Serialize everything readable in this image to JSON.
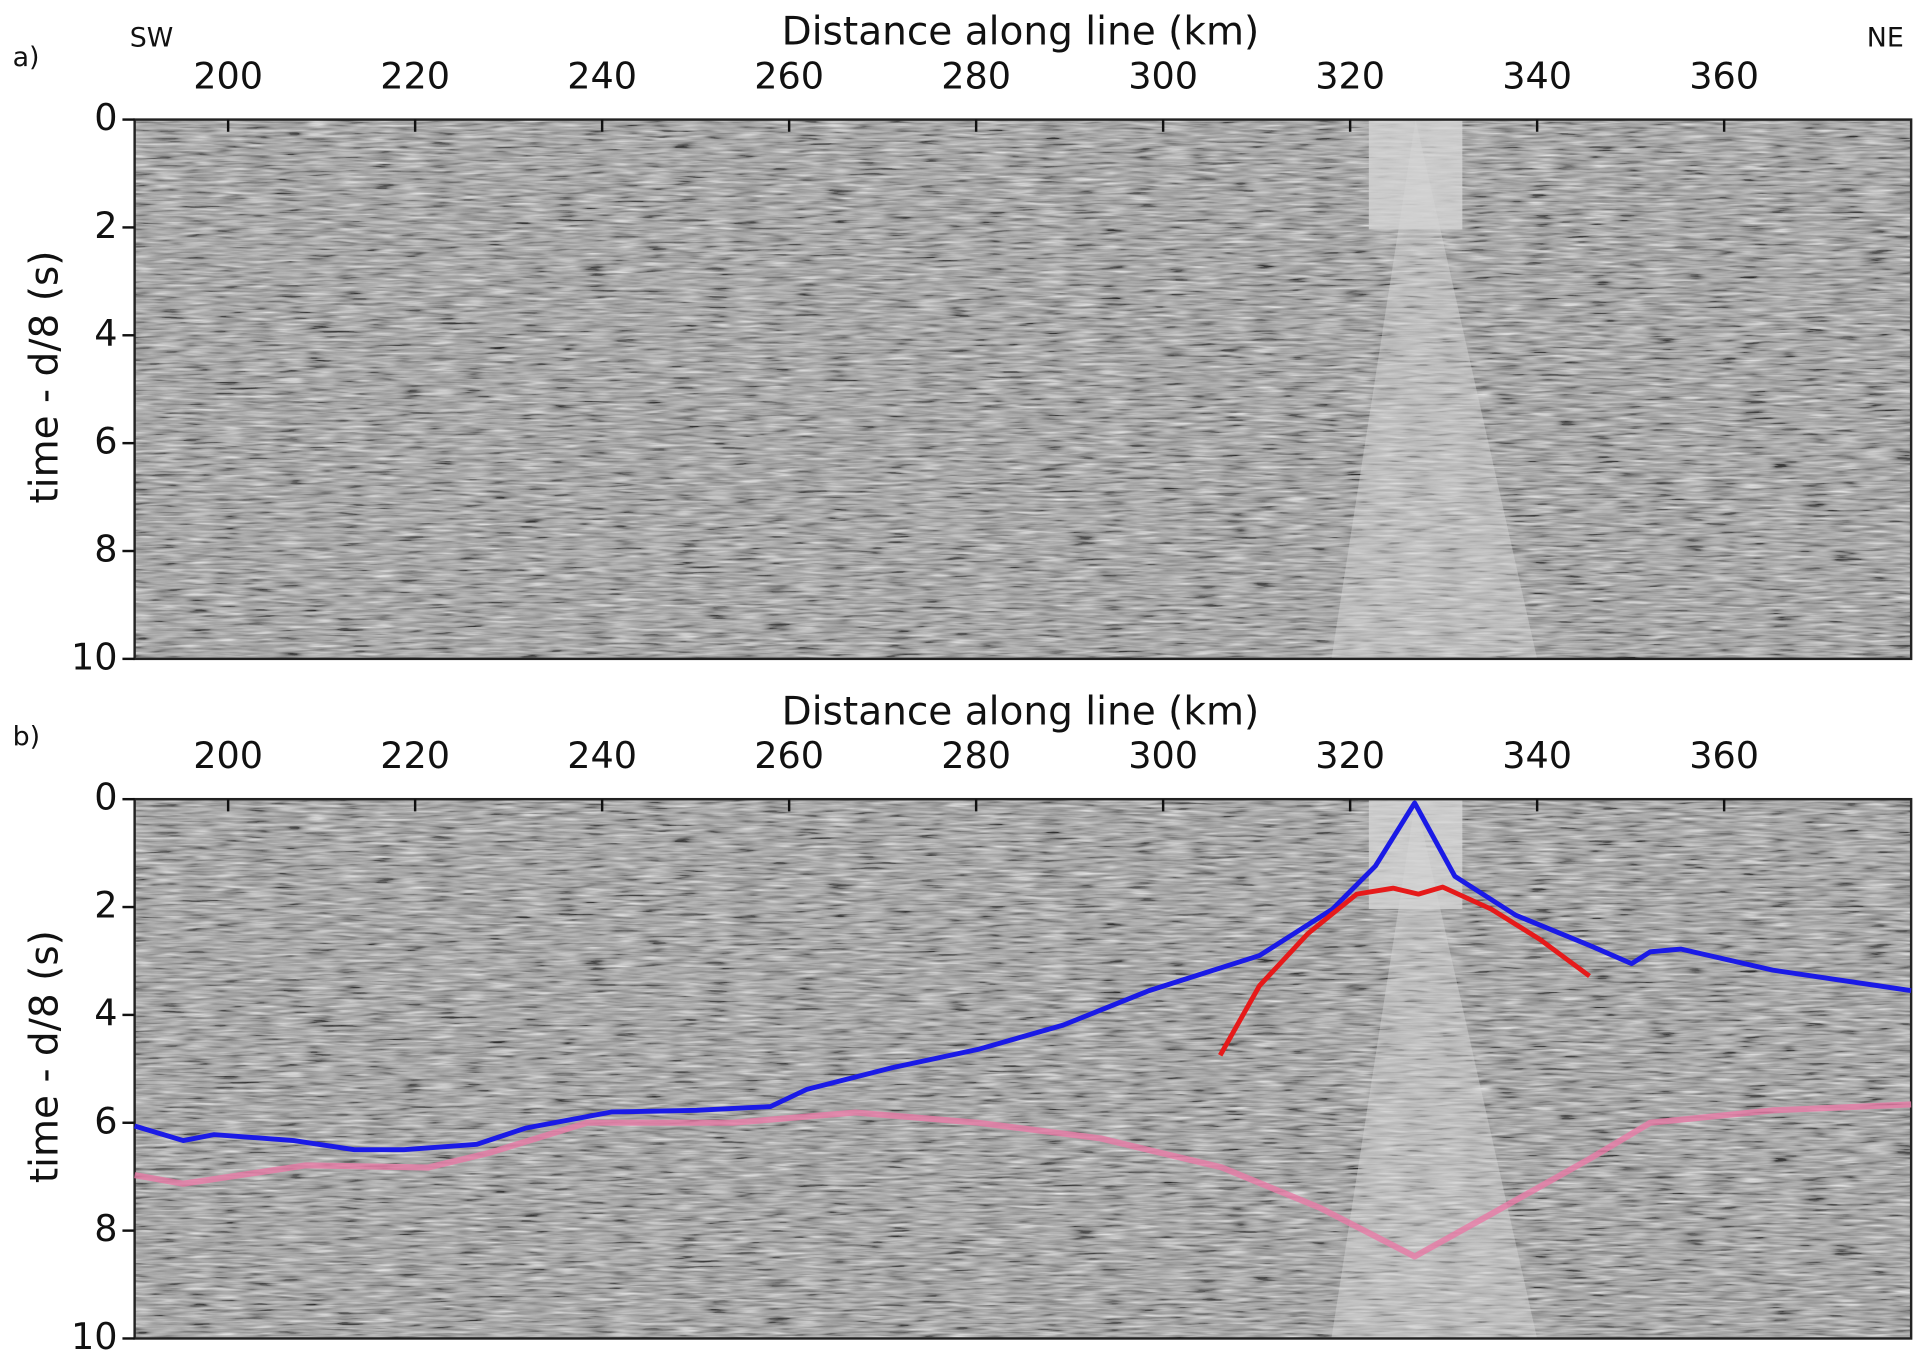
{
  "chart_data": [
    {
      "type": "seismic",
      "panel_label": "a)",
      "left_label": "SW",
      "right_label": "NE",
      "xlabel": "Distance along line (km)",
      "ylabel": "time - d/8 (s)",
      "xlim": [
        190,
        380
      ],
      "xticks": [
        200,
        220,
        240,
        260,
        280,
        300,
        320,
        340,
        360
      ],
      "ylim": [
        0,
        10
      ],
      "yticks": [
        0,
        2,
        4,
        6,
        8,
        10
      ],
      "y_inverted": true,
      "x_axis_top": true
    },
    {
      "type": "line",
      "panel_label": "b)",
      "xlabel": "Distance along line (km)",
      "ylabel": "time - d/8 (s)",
      "xlim": [
        190,
        380
      ],
      "xticks": [
        200,
        220,
        240,
        260,
        280,
        300,
        320,
        340,
        360
      ],
      "ylim": [
        0,
        10
      ],
      "yticks": [
        0,
        2,
        4,
        6,
        8,
        10
      ],
      "y_inverted": true,
      "x_axis_top": true,
      "series": [
        {
          "color": "#e87aa6",
          "x": [
            190,
            195.2,
            208.3,
            221.4,
            227.9,
            238.4,
            254,
            267.1,
            280.2,
            293.3,
            306.3,
            316.8,
            326.9,
            335.1,
            345.6,
            352.1,
            365.2,
            380
          ],
          "values": [
            6.97,
            7.13,
            6.79,
            6.83,
            6.56,
            6.0,
            6.0,
            5.81,
            6.0,
            6.29,
            6.83,
            7.58,
            8.48,
            7.69,
            6.67,
            6.0,
            5.77,
            5.66
          ]
        },
        {
          "color": "#1a1ae6",
          "x": [
            190,
            195.2,
            198.5,
            207,
            213.5,
            218.8,
            226.6,
            231.8,
            241,
            250.1,
            258,
            261.9,
            271,
            280.2,
            289.3,
            298.5,
            310.3,
            318.1,
            322.7,
            326.9,
            331.2,
            337.7,
            345.6,
            350.1,
            352.1,
            355.4,
            365.2,
            380
          ],
          "values": [
            6.06,
            6.33,
            6.22,
            6.33,
            6.5,
            6.5,
            6.4,
            6.1,
            5.8,
            5.77,
            5.7,
            5.38,
            4.98,
            4.64,
            4.19,
            3.55,
            2.9,
            2.04,
            1.24,
            0.07,
            1.43,
            2.15,
            2.71,
            3.05,
            2.83,
            2.78,
            3.17,
            3.55
          ]
        },
        {
          "color": "#e61a1a",
          "x": [
            306.1,
            310.3,
            315.5,
            320.7,
            324.6,
            327.3,
            329.9,
            335.1,
            340.3,
            345.6
          ],
          "values": [
            4.75,
            3.46,
            2.49,
            1.76,
            1.65,
            1.76,
            1.63,
            2.04,
            2.6,
            3.28
          ]
        }
      ]
    }
  ]
}
